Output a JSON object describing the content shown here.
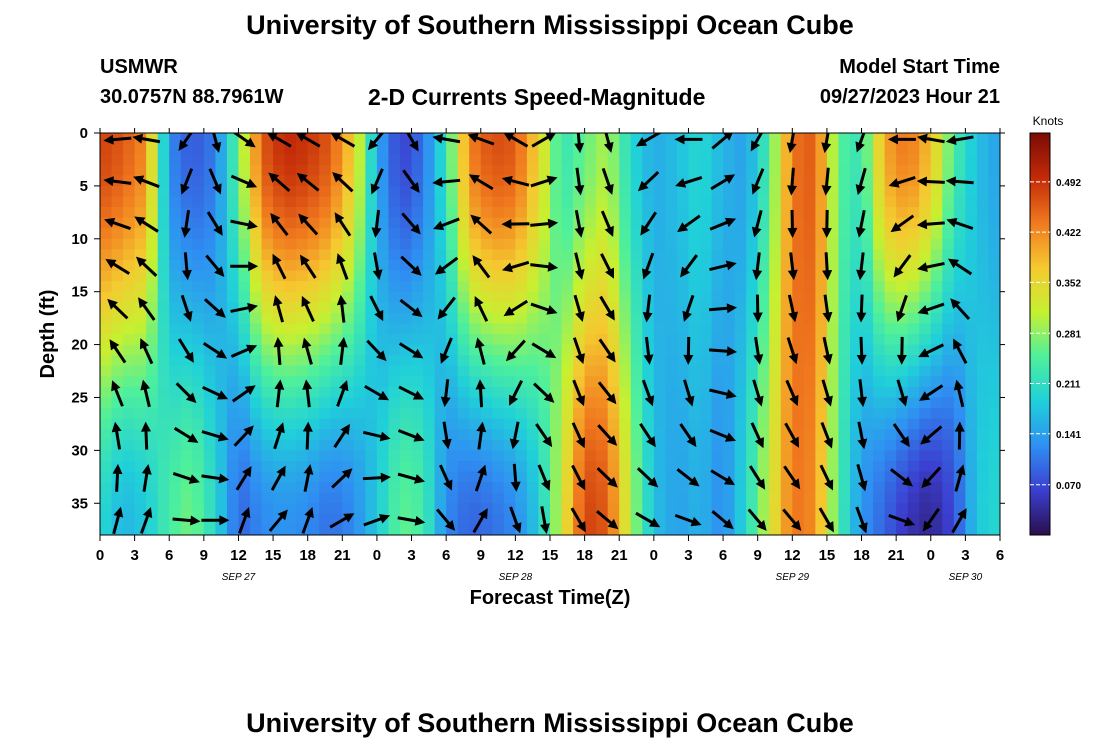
{
  "header": {
    "title": "University of Southern Mississippi Ocean Cube",
    "station": "USMWR",
    "coordinates": "30.0757N  88.7961W",
    "subtitle": "2-D Currents Speed-Magnitude",
    "model_start_label": "Model Start Time",
    "model_start_value": "09/27/2023 Hour 21"
  },
  "footer": {
    "title": "University of Southern Mississippi Ocean Cube"
  },
  "colors": {
    "scale": [
      "#2a0f4e",
      "#3b3fd0",
      "#2f8ff2",
      "#20d0d9",
      "#4ff09b",
      "#c7f030",
      "#f5c930",
      "#f0781e",
      "#c32a08",
      "#7a0b05"
    ]
  },
  "chart_data": {
    "type": "heatmap",
    "xlabel": "Forecast Time(Z)",
    "ylabel": "Depth (ft)",
    "xlim": [
      0,
      78
    ],
    "ylim": [
      0,
      38
    ],
    "x_ticks": [
      0,
      3,
      6,
      9,
      12,
      15,
      18,
      21,
      24,
      27,
      30,
      33,
      36,
      39,
      42,
      45,
      48,
      51,
      54,
      57,
      60,
      63,
      66,
      69,
      72,
      75,
      78
    ],
    "x_tick_labels": [
      "0",
      "3",
      "6",
      "9",
      "12",
      "15",
      "18",
      "21",
      "0",
      "3",
      "6",
      "9",
      "12",
      "15",
      "18",
      "21",
      "0",
      "3",
      "6",
      "9",
      "12",
      "15",
      "18",
      "21",
      "0",
      "3",
      "6"
    ],
    "y_ticks": [
      0,
      5,
      10,
      15,
      20,
      25,
      30,
      35
    ],
    "y_tick_labels": [
      "0",
      "5",
      "10",
      "15",
      "20",
      "25",
      "30",
      "35"
    ],
    "date_labels": [
      {
        "text": "SEP 27",
        "x": 12
      },
      {
        "text": "SEP 28",
        "x": 36
      },
      {
        "text": "SEP 29",
        "x": 60
      },
      {
        "text": "SEP 30",
        "x": 75
      }
    ],
    "colorbar": {
      "label": "Knots",
      "min": 0.0,
      "max": 0.56,
      "ticks": [
        0.07,
        0.141,
        0.211,
        0.281,
        0.352,
        0.422,
        0.492
      ],
      "tick_labels": [
        "0.070",
        "0.141",
        "0.211",
        "0.281",
        "0.352",
        "0.422",
        "0.492"
      ]
    },
    "speed_columns": [
      {
        "x": 0,
        "top": 0.48,
        "bottom": 0.2
      },
      {
        "x": 2,
        "top": 0.46,
        "bottom": 0.16
      },
      {
        "x": 4,
        "top": 0.42,
        "bottom": 0.18
      },
      {
        "x": 6,
        "top": 0.12,
        "bottom": 0.24
      },
      {
        "x": 8,
        "top": 0.08,
        "bottom": 0.27
      },
      {
        "x": 10,
        "top": 0.11,
        "bottom": 0.2
      },
      {
        "x": 12,
        "top": 0.26,
        "bottom": 0.09
      },
      {
        "x": 14,
        "top": 0.46,
        "bottom": 0.12
      },
      {
        "x": 16,
        "top": 0.5,
        "bottom": 0.13
      },
      {
        "x": 18,
        "top": 0.49,
        "bottom": 0.12
      },
      {
        "x": 20,
        "top": 0.46,
        "bottom": 0.1
      },
      {
        "x": 22,
        "top": 0.36,
        "bottom": 0.12
      },
      {
        "x": 24,
        "top": 0.15,
        "bottom": 0.18
      },
      {
        "x": 26,
        "top": 0.06,
        "bottom": 0.26
      },
      {
        "x": 28,
        "top": 0.1,
        "bottom": 0.24
      },
      {
        "x": 30,
        "top": 0.22,
        "bottom": 0.12
      },
      {
        "x": 32,
        "top": 0.43,
        "bottom": 0.09
      },
      {
        "x": 34,
        "top": 0.47,
        "bottom": 0.1
      },
      {
        "x": 36,
        "top": 0.46,
        "bottom": 0.12
      },
      {
        "x": 38,
        "top": 0.36,
        "bottom": 0.18
      },
      {
        "x": 40,
        "top": 0.22,
        "bottom": 0.32
      },
      {
        "x": 42,
        "top": 0.26,
        "bottom": 0.48
      },
      {
        "x": 44,
        "top": 0.3,
        "bottom": 0.46
      },
      {
        "x": 46,
        "top": 0.2,
        "bottom": 0.3
      },
      {
        "x": 48,
        "top": 0.15,
        "bottom": 0.17
      },
      {
        "x": 50,
        "top": 0.17,
        "bottom": 0.14
      },
      {
        "x": 52,
        "top": 0.2,
        "bottom": 0.16
      },
      {
        "x": 54,
        "top": 0.16,
        "bottom": 0.12
      },
      {
        "x": 56,
        "top": 0.14,
        "bottom": 0.2
      },
      {
        "x": 58,
        "top": 0.24,
        "bottom": 0.32
      },
      {
        "x": 60,
        "top": 0.44,
        "bottom": 0.44
      },
      {
        "x": 62,
        "top": 0.46,
        "bottom": 0.42
      },
      {
        "x": 64,
        "top": 0.25,
        "bottom": 0.24
      },
      {
        "x": 66,
        "top": 0.22,
        "bottom": 0.13
      },
      {
        "x": 68,
        "top": 0.4,
        "bottom": 0.09
      },
      {
        "x": 70,
        "top": 0.44,
        "bottom": 0.05
      },
      {
        "x": 72,
        "top": 0.38,
        "bottom": 0.03
      },
      {
        "x": 74,
        "top": 0.24,
        "bottom": 0.07
      },
      {
        "x": 76,
        "top": 0.17,
        "bottom": 0.18
      },
      {
        "x": 78,
        "top": 0.14,
        "bottom": 0.2
      }
    ],
    "vector_columns": [
      {
        "x": 1.5,
        "dir_top": 265,
        "dir_bottom": 15
      },
      {
        "x": 4,
        "dir_top": 280,
        "dir_bottom": 20
      },
      {
        "x": 7.5,
        "dir_top": 215,
        "dir_bottom": 95
      },
      {
        "x": 10,
        "dir_top": 165,
        "dir_bottom": 90
      },
      {
        "x": 12.5,
        "dir_top": 125,
        "dir_bottom": 20
      },
      {
        "x": 15.5,
        "dir_top": 300,
        "dir_bottom": 40
      },
      {
        "x": 18,
        "dir_top": 300,
        "dir_bottom": 20
      },
      {
        "x": 21,
        "dir_top": 300,
        "dir_bottom": 60
      },
      {
        "x": 24,
        "dir_top": 220,
        "dir_bottom": 70
      },
      {
        "x": 27,
        "dir_top": 150,
        "dir_bottom": 100
      },
      {
        "x": 30,
        "dir_top": 280,
        "dir_bottom": 140
      },
      {
        "x": 33,
        "dir_top": 290,
        "dir_bottom": 30
      },
      {
        "x": 36,
        "dir_top": 300,
        "dir_bottom": 160
      },
      {
        "x": 38.5,
        "dir_top": 60,
        "dir_bottom": 170
      },
      {
        "x": 41.5,
        "dir_top": 175,
        "dir_bottom": 150
      },
      {
        "x": 44,
        "dir_top": 165,
        "dir_bottom": 130
      },
      {
        "x": 47.5,
        "dir_top": 240,
        "dir_bottom": 120
      },
      {
        "x": 51,
        "dir_top": 270,
        "dir_bottom": 110
      },
      {
        "x": 54,
        "dir_top": 50,
        "dir_bottom": 130
      },
      {
        "x": 57,
        "dir_top": 210,
        "dir_bottom": 140
      },
      {
        "x": 60,
        "dir_top": 190,
        "dir_bottom": 140
      },
      {
        "x": 63,
        "dir_top": 190,
        "dir_bottom": 150
      },
      {
        "x": 66,
        "dir_top": 200,
        "dir_bottom": 160
      },
      {
        "x": 69.5,
        "dir_top": 270,
        "dir_bottom": 110
      },
      {
        "x": 72,
        "dir_top": 280,
        "dir_bottom": 215
      },
      {
        "x": 74.5,
        "dir_top": 260,
        "dir_bottom": 30
      }
    ]
  }
}
